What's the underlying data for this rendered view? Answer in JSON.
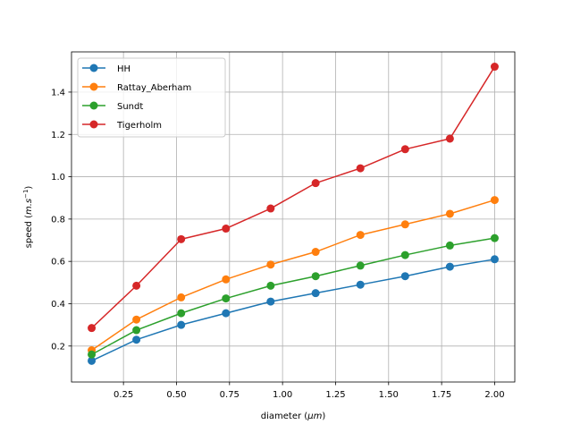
{
  "chart_data": {
    "type": "line",
    "title": "",
    "xlabel_prefix": "diameter (",
    "xlabel_unit": "μm",
    "xlabel_suffix": ")",
    "ylabel_prefix": "speed (",
    "ylabel_unit": "m.s",
    "ylabel_exp": "−1",
    "ylabel_suffix": ")",
    "xlim": [
      0.005,
      2.095
    ],
    "ylim": [
      0.03,
      1.59
    ],
    "xticks": [
      0.25,
      0.5,
      0.75,
      1.0,
      1.25,
      1.5,
      1.75,
      2.0
    ],
    "xtick_labels": [
      "0.25",
      "0.50",
      "0.75",
      "1.00",
      "1.25",
      "1.50",
      "1.75",
      "2.00"
    ],
    "yticks": [
      0.2,
      0.4,
      0.6,
      0.8,
      1.0,
      1.2,
      1.4
    ],
    "ytick_labels": [
      "0.2",
      "0.4",
      "0.6",
      "0.8",
      "1.0",
      "1.2",
      "1.4"
    ],
    "grid": true,
    "legend_position": "top-left",
    "x": [
      0.1,
      0.311,
      0.522,
      0.733,
      0.944,
      1.156,
      1.367,
      1.578,
      1.789,
      2.0
    ],
    "series": [
      {
        "name": "HH",
        "color": "#1f77b4",
        "values": [
          0.13,
          0.23,
          0.3,
          0.355,
          0.41,
          0.45,
          0.49,
          0.53,
          0.575,
          0.61
        ]
      },
      {
        "name": "Rattay_Aberham",
        "color": "#ff7f0e",
        "values": [
          0.18,
          0.325,
          0.43,
          0.515,
          0.585,
          0.645,
          0.725,
          0.775,
          0.825,
          0.89
        ]
      },
      {
        "name": "Sundt",
        "color": "#2ca02c",
        "values": [
          0.16,
          0.275,
          0.355,
          0.425,
          0.485,
          0.53,
          0.58,
          0.63,
          0.675,
          0.71
        ]
      },
      {
        "name": "Tigerholm",
        "color": "#d62728",
        "values": [
          0.285,
          0.485,
          0.705,
          0.755,
          0.85,
          0.97,
          1.04,
          1.13,
          1.18,
          1.52
        ]
      }
    ]
  }
}
